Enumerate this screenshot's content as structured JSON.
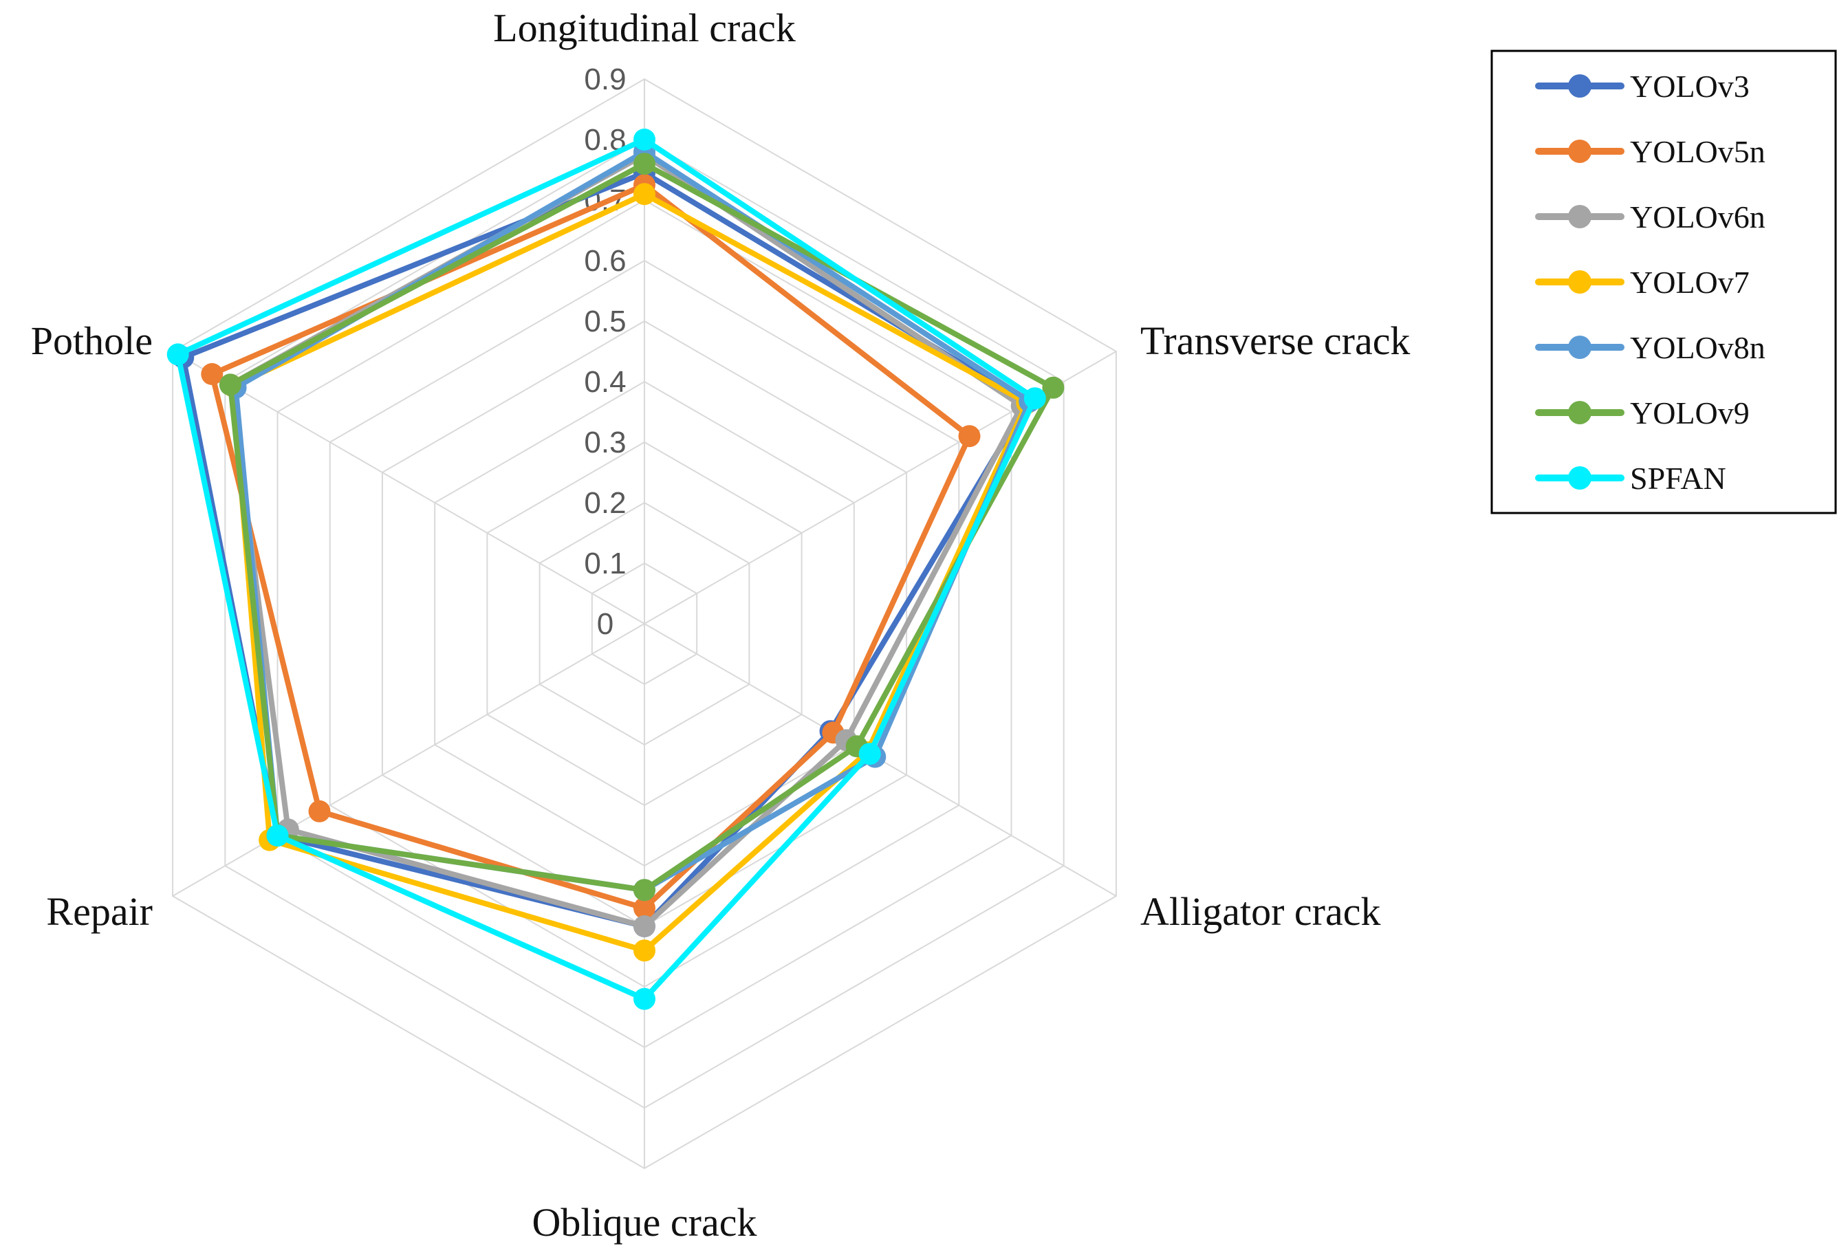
{
  "chart_data": {
    "type": "radar",
    "title": "",
    "categories": [
      "Longitudinal crack",
      "Transverse crack",
      "Alligator crack",
      "Oblique crack",
      "Repair",
      "Pothole"
    ],
    "r_range": [
      0,
      0.9
    ],
    "r_ticks": [
      "0",
      "0.1",
      "0.2",
      "0.3",
      "0.4",
      "0.5",
      "0.6",
      "0.7",
      "0.8",
      "0.9"
    ],
    "grid": true,
    "legend_position": "top-right",
    "series": [
      {
        "name": "YOLOv3",
        "color": "#4472C4",
        "values": [
          0.745,
          0.73,
          0.355,
          0.5,
          0.7,
          0.88
        ]
      },
      {
        "name": "YOLOv5n",
        "color": "#ED7D31",
        "values": [
          0.725,
          0.62,
          0.36,
          0.47,
          0.62,
          0.825
        ]
      },
      {
        "name": "YOLOv6n",
        "color": "#A5A5A5",
        "values": [
          0.775,
          0.72,
          0.385,
          0.5,
          0.68,
          0.79
        ]
      },
      {
        "name": "YOLOv7",
        "color": "#FFC000",
        "values": [
          0.71,
          0.73,
          0.425,
          0.54,
          0.715,
          0.785
        ]
      },
      {
        "name": "YOLOv8n",
        "color": "#5B9BD5",
        "values": [
          0.78,
          0.735,
          0.44,
          0.44,
          0.7,
          0.78
        ]
      },
      {
        "name": "YOLOv9",
        "color": "#70AD47",
        "values": [
          0.76,
          0.78,
          0.405,
          0.44,
          0.7,
          0.79
        ]
      },
      {
        "name": "SPFAN",
        "color": "#00F0FF",
        "values": [
          0.8,
          0.745,
          0.43,
          0.62,
          0.7,
          0.89
        ]
      }
    ]
  }
}
